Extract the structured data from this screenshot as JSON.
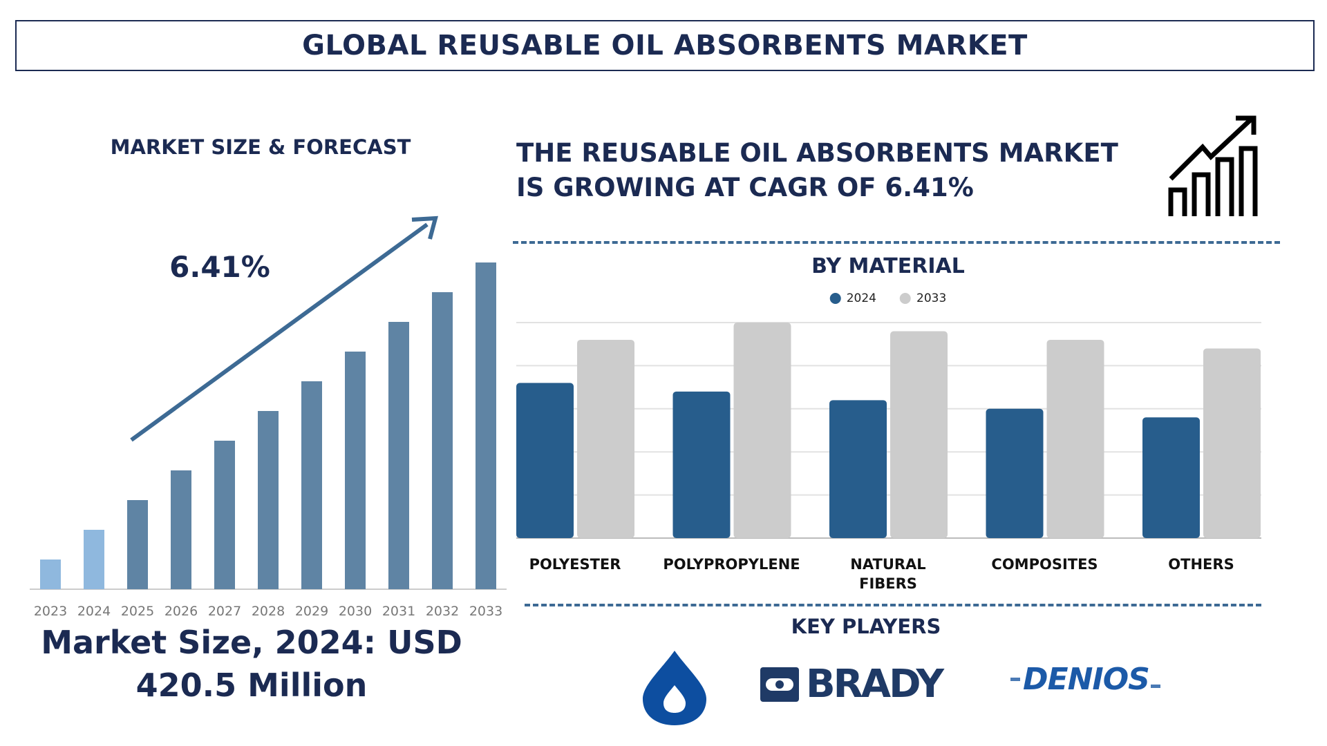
{
  "title": "GLOBAL REUSABLE OIL ABSORBENTS MARKET",
  "left_panel": {
    "heading": "MARKET SIZE & FORECAST",
    "cagr_label": "6.41%",
    "market_size_line1": "Market Size, 2024: USD",
    "market_size_line2": "420.5 Million"
  },
  "headline": {
    "line1": "THE REUSABLE OIL ABSORBENTS MARKET",
    "line2": "IS GROWING AT CAGR OF 6.41%",
    "icon": "growth-chart-icon"
  },
  "key_players": {
    "heading": "KEY PLAYERS",
    "logos": [
      "drop-logo",
      "BRADY",
      "DENIOS"
    ]
  },
  "colors": {
    "navy": "#1b2a52",
    "bar_2024": "#275d8c",
    "bar_2033": "#cccccc",
    "forecast_bar": "#5f84a4",
    "history_bar": "#8fb8de",
    "arrow": "#3d6a94"
  },
  "chart_data": [
    {
      "type": "bar",
      "title": "MARKET SIZE & FORECAST",
      "categories": [
        "2023",
        "2024",
        "2025",
        "2026",
        "2027",
        "2028",
        "2029",
        "2030",
        "2031",
        "2032",
        "2033"
      ],
      "values": [
        1,
        2,
        3,
        4,
        5,
        6,
        7,
        8,
        9,
        10,
        11
      ],
      "annotation": "6.41%",
      "grid": false
    },
    {
      "type": "bar",
      "title": "BY MATERIAL",
      "categories": [
        "POLYESTER",
        "POLYPROPYLENE",
        "NATURAL FIBERS",
        "COMPOSITES",
        "OTHERS"
      ],
      "series": [
        {
          "name": "2024",
          "values": [
            3.6,
            3.4,
            3.2,
            3.0,
            2.8
          ]
        },
        {
          "name": "2033",
          "values": [
            4.6,
            5.0,
            4.8,
            4.6,
            4.4
          ]
        }
      ],
      "ylim": [
        0,
        5
      ],
      "grid": true,
      "legend": "top-center"
    }
  ]
}
